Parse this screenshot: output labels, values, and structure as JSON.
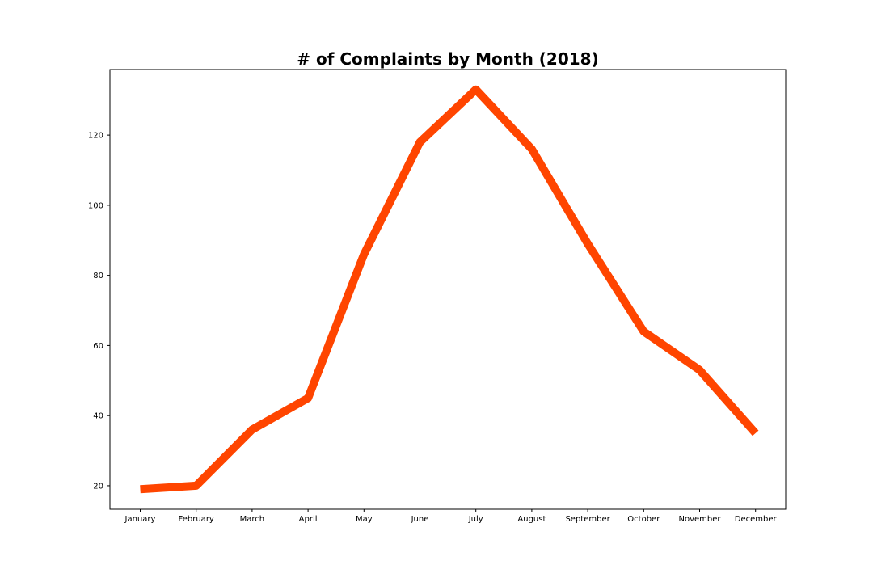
{
  "chart_data": {
    "type": "line",
    "title": "# of Complaints by Month (2018)",
    "xlabel": "",
    "ylabel": "",
    "categories": [
      "January",
      "February",
      "March",
      "April",
      "May",
      "June",
      "July",
      "August",
      "September",
      "October",
      "November",
      "December"
    ],
    "series": [
      {
        "values": [
          19,
          20,
          36,
          45,
          86,
          118,
          133,
          116,
          89,
          64,
          53,
          35
        ],
        "color": "#ff4500"
      }
    ],
    "yticks": [
      20,
      40,
      60,
      80,
      100,
      120
    ],
    "ylim": [
      13.3,
      138.7
    ],
    "grid": false,
    "legend": "none"
  }
}
